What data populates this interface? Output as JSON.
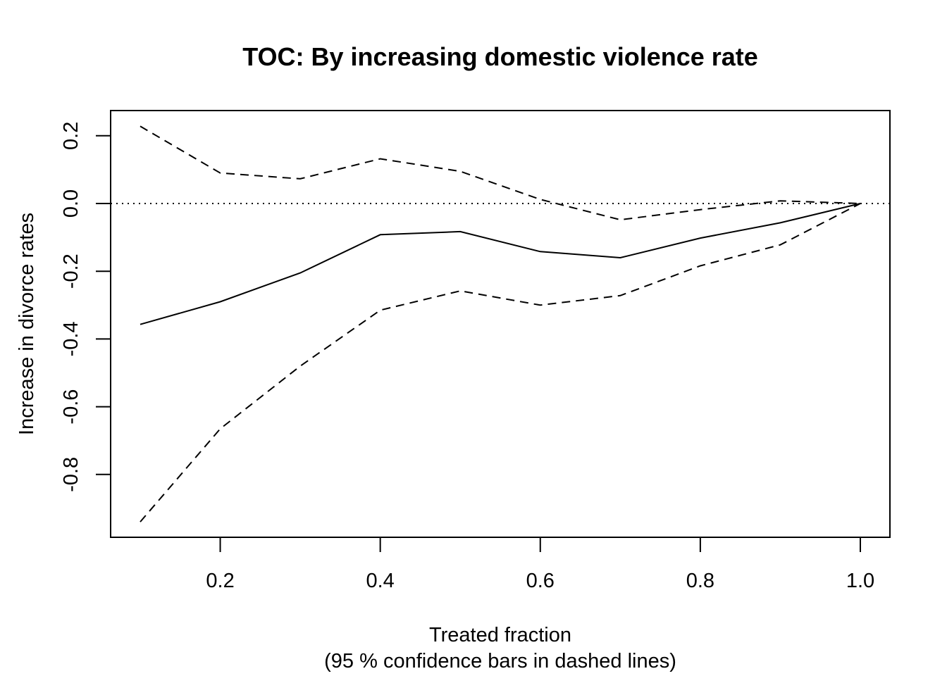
{
  "chart_data": {
    "type": "line",
    "title": "TOC: By increasing domestic violence rate",
    "xlabel": "Treated fraction",
    "xlabel_sub": "(95 % confidence bars in dashed lines)",
    "ylabel": "Increase in divorce rates",
    "xlim": [
      0.1,
      1.0
    ],
    "ylim": [
      -0.94,
      0.23
    ],
    "x_ticks": [
      0.2,
      0.4,
      0.6,
      0.8,
      1.0
    ],
    "x_tick_labels": [
      "0.2",
      "0.4",
      "0.6",
      "0.8",
      "1.0"
    ],
    "y_ticks": [
      0.2,
      0.0,
      -0.2,
      -0.4,
      -0.6,
      -0.8
    ],
    "y_tick_labels": [
      "0.2",
      "0.0",
      "-0.2",
      "-0.4",
      "-0.6",
      "-0.8"
    ],
    "grid": false,
    "x": [
      0.1,
      0.2,
      0.3,
      0.4,
      0.5,
      0.6,
      0.7,
      0.8,
      0.9,
      1.0
    ],
    "series": [
      {
        "style": "solid",
        "values": [
          -0.357,
          -0.29,
          -0.205,
          -0.092,
          -0.083,
          -0.142,
          -0.16,
          -0.102,
          -0.057,
          0.0
        ]
      },
      {
        "style": "dashed",
        "values": [
          0.228,
          0.09,
          0.073,
          0.132,
          0.095,
          0.012,
          -0.048,
          -0.018,
          0.008,
          0.0
        ]
      },
      {
        "style": "dashed",
        "values": [
          -0.94,
          -0.665,
          -0.48,
          -0.315,
          -0.258,
          -0.3,
          -0.272,
          -0.184,
          -0.122,
          0.0
        ]
      }
    ],
    "reference_line": {
      "y": 0.0,
      "style": "dotted"
    }
  }
}
